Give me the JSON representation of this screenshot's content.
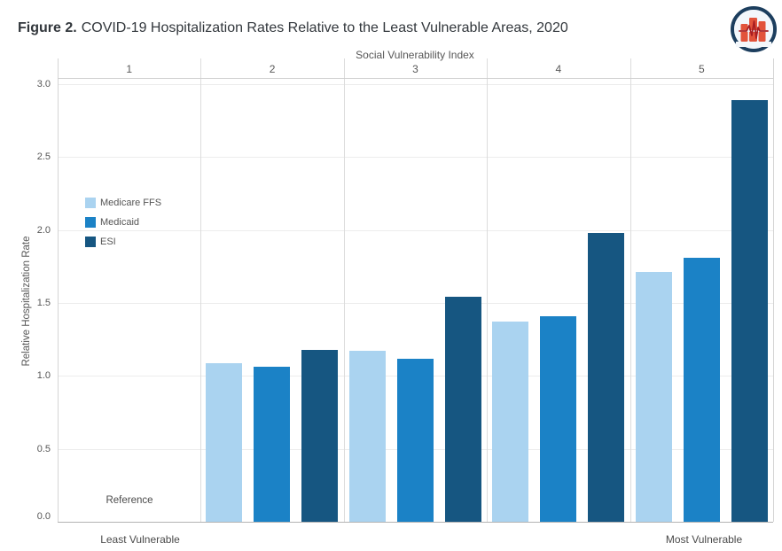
{
  "header": {
    "figure_label": "Figure 2.",
    "title": "COVID-19 Hospitalization Rates Relative to the Least Vulnerable Areas, 2020",
    "logo_name": "health-system-tracker-logo"
  },
  "chart_data": {
    "type": "bar",
    "title": "Figure 2. COVID-19 Hospitalization Rates Relative to the Least Vulnerable Areas, 2020",
    "top_axis_label": "Social Vulnerability Index",
    "categories": [
      "1",
      "2",
      "3",
      "4",
      "5"
    ],
    "series": [
      {
        "name": "Medicare FFS",
        "color": "#aad3f0",
        "values": [
          null,
          1.09,
          1.17,
          1.37,
          1.71
        ]
      },
      {
        "name": "Medicaid",
        "color": "#1b82c6",
        "values": [
          null,
          1.06,
          1.12,
          1.41,
          1.81
        ]
      },
      {
        "name": "ESI",
        "color": "#165681",
        "values": [
          null,
          1.18,
          1.54,
          1.98,
          2.89
        ]
      }
    ],
    "reference_category": "1",
    "reference_label": "Reference",
    "ylabel": "Relative Hospitalization Rate",
    "ylim": [
      0,
      3.0
    ],
    "ytick_step": 0.5,
    "grid": true,
    "legend_position": "inside-upper-left",
    "x_end_labels": {
      "left": "Least Vulnerable",
      "right": "Most Vulnerable"
    }
  }
}
